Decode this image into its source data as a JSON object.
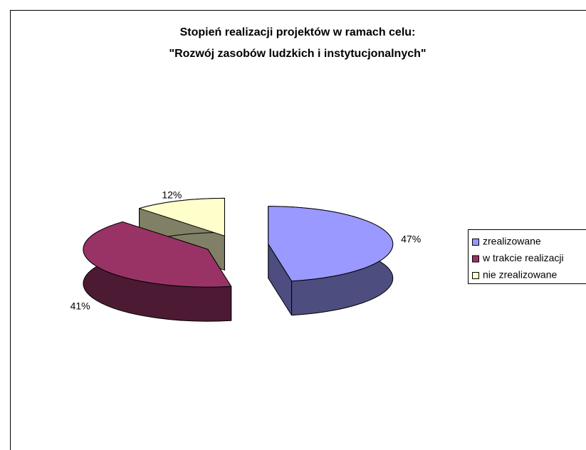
{
  "chart_data": {
    "type": "pie3d",
    "title": [
      "Stopień realizacji projektów w ramach celu:",
      "\"Rozwój zasobów ludzkich i instytucjonalnych\""
    ],
    "categories": [
      "zrealizowane",
      "w trakcie realizacji",
      "nie zrealizowane"
    ],
    "values": [
      47,
      41,
      12
    ],
    "value_labels": [
      "47%",
      "41%",
      "12%"
    ],
    "colors": [
      "#9999ff",
      "#993366",
      "#ffffcc"
    ],
    "legend": "right"
  }
}
